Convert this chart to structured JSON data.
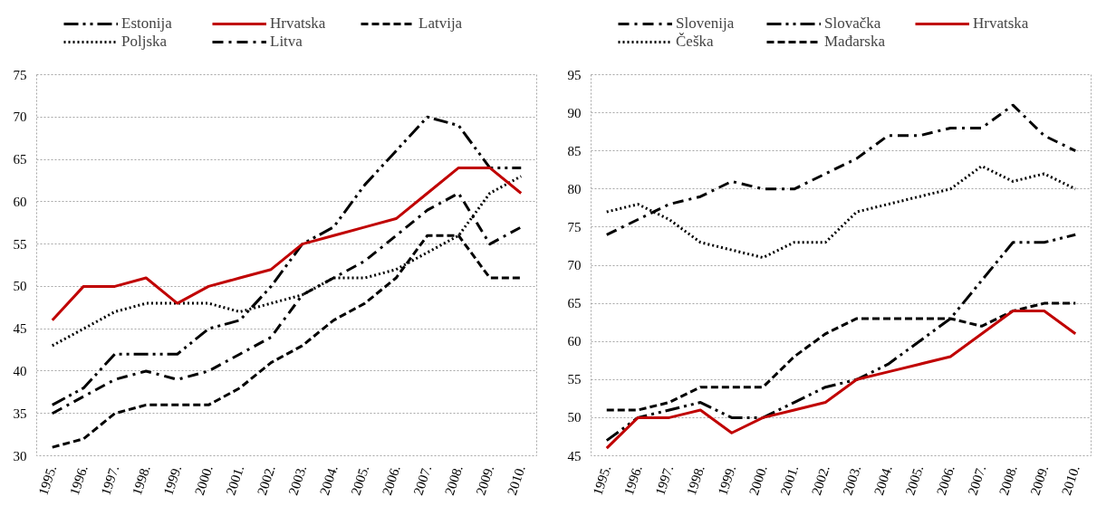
{
  "chart_data": [
    {
      "type": "line",
      "categories": [
        "1995.",
        "1996.",
        "1997.",
        "1998.",
        "1999.",
        "2000.",
        "2001.",
        "2002.",
        "2003.",
        "2004.",
        "2005.",
        "2006.",
        "2007.",
        "2008.",
        "2009.",
        "2010."
      ],
      "ylim": [
        30,
        75
      ],
      "yticks": [
        30,
        35,
        40,
        45,
        50,
        55,
        60,
        65,
        70,
        75
      ],
      "grid": "y",
      "legend": "top",
      "series": [
        {
          "name": "Estonija",
          "color": "#000000",
          "line_style": "longdashdotdot",
          "values": [
            36,
            38,
            42,
            42,
            42,
            45,
            46,
            50,
            55,
            57,
            62,
            66,
            70,
            69,
            64,
            64
          ]
        },
        {
          "name": "Poljska",
          "color": "#000000",
          "line_style": "dotted",
          "values": [
            43,
            45,
            47,
            48,
            48,
            48,
            47,
            48,
            49,
            51,
            51,
            52,
            54,
            56,
            61,
            63
          ]
        },
        {
          "name": "Hrvatska",
          "color": "#c00000",
          "line_style": "solid",
          "values": [
            46,
            50,
            50,
            51,
            48,
            50,
            51,
            52,
            55,
            56,
            57,
            58,
            61,
            64,
            64,
            61
          ]
        },
        {
          "name": "Litva",
          "color": "#000000",
          "line_style": "dashdot",
          "values": [
            35,
            37,
            39,
            40,
            39,
            40,
            42,
            44,
            49,
            51,
            53,
            56,
            59,
            61,
            55,
            57
          ]
        },
        {
          "name": "Latvija",
          "color": "#000000",
          "line_style": "dashed",
          "values": [
            31,
            32,
            35,
            36,
            36,
            36,
            38,
            41,
            43,
            46,
            48,
            51,
            56,
            56,
            51,
            51
          ]
        }
      ]
    },
    {
      "type": "line",
      "categories": [
        "1995.",
        "1996.",
        "1997.",
        "1998.",
        "1999.",
        "2000.",
        "2001.",
        "2002.",
        "2003.",
        "2004.",
        "2005.",
        "2006.",
        "2007.",
        "2008.",
        "2009.",
        "2010."
      ],
      "ylim": [
        45,
        95
      ],
      "yticks": [
        45,
        50,
        55,
        60,
        65,
        70,
        75,
        80,
        85,
        90,
        95
      ],
      "grid": "y",
      "legend": "top",
      "series": [
        {
          "name": "Slovenija",
          "color": "#000000",
          "line_style": "dashdot",
          "values": [
            74,
            76,
            78,
            79,
            81,
            80,
            80,
            82,
            84,
            87,
            87,
            88,
            88,
            91,
            87,
            85
          ]
        },
        {
          "name": "Češka",
          "color": "#000000",
          "line_style": "dotted",
          "values": [
            77,
            78,
            76,
            73,
            72,
            71,
            73,
            73,
            77,
            78,
            79,
            80,
            83,
            81,
            82,
            80
          ]
        },
        {
          "name": "Slovačka",
          "color": "#000000",
          "line_style": "longdashdotdot",
          "values": [
            47,
            50,
            51,
            52,
            50,
            50,
            52,
            54,
            55,
            57,
            60,
            63,
            68,
            73,
            73,
            74
          ]
        },
        {
          "name": "Mađarska",
          "color": "#000000",
          "line_style": "dashed",
          "values": [
            51,
            51,
            52,
            54,
            54,
            54,
            58,
            61,
            63,
            63,
            63,
            63,
            62,
            64,
            65,
            65
          ]
        },
        {
          "name": "Hrvatska",
          "color": "#c00000",
          "line_style": "solid",
          "values": [
            46,
            50,
            50,
            51,
            48,
            50,
            51,
            52,
            55,
            56,
            57,
            58,
            61,
            64,
            64,
            61
          ]
        }
      ]
    }
  ]
}
